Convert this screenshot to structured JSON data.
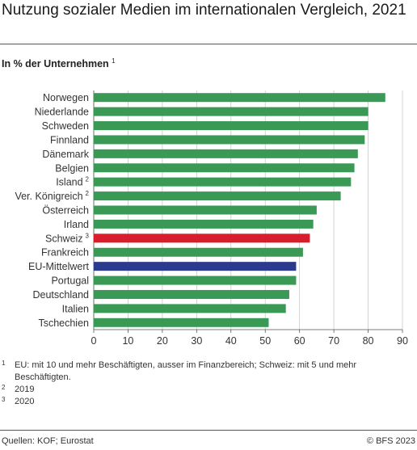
{
  "header": {
    "title": "Nutzung sozialer Medien im internationalen Vergleich, 2021",
    "subtitle": "In % der Unternehmen",
    "subtitle_note": "1"
  },
  "chart_data": {
    "type": "bar",
    "orientation": "horizontal",
    "unit": "% der Unternehmen",
    "categories": [
      "Norwegen",
      "Niederlande",
      "Schweden",
      "Finnland",
      "Dänemark",
      "Belgien",
      "Island",
      "Ver. Königreich",
      "Österreich",
      "Irland",
      "Schweiz",
      "Frankreich",
      "EU-Mittelwert",
      "Portugal",
      "Deutschland",
      "Italien",
      "Tschechien"
    ],
    "category_notes": [
      "",
      "",
      "",
      "",
      "",
      "",
      "2",
      "2",
      "",
      "",
      "3",
      "",
      "",
      "",
      "",
      "",
      ""
    ],
    "values": [
      85,
      80,
      80,
      79,
      77,
      76,
      75,
      72,
      65,
      64,
      63,
      61,
      59,
      59,
      57,
      56,
      51
    ],
    "colors": [
      "#3a9a55",
      "#3a9a55",
      "#3a9a55",
      "#3a9a55",
      "#3a9a55",
      "#3a9a55",
      "#3a9a55",
      "#3a9a55",
      "#3a9a55",
      "#3a9a55",
      "#d81e2c",
      "#3a9a55",
      "#2b3a8c",
      "#3a9a55",
      "#3a9a55",
      "#3a9a55",
      "#3a9a55"
    ],
    "xlim": [
      0,
      90
    ],
    "xticks": [
      0,
      10,
      20,
      30,
      40,
      50,
      60,
      70,
      80,
      90
    ],
    "grid": "vertical"
  },
  "notes": [
    {
      "num": "1",
      "text": "EU: mit 10 und mehr Beschäftigten, ausser im Finanzbereich; Schweiz: mit 5 und mehr Beschäftigten."
    },
    {
      "num": "2",
      "text": "2019"
    },
    {
      "num": "3",
      "text": "2020"
    }
  ],
  "footer": {
    "source": "Quellen: KOF; Eurostat",
    "copyright": "© BFS 2023"
  }
}
